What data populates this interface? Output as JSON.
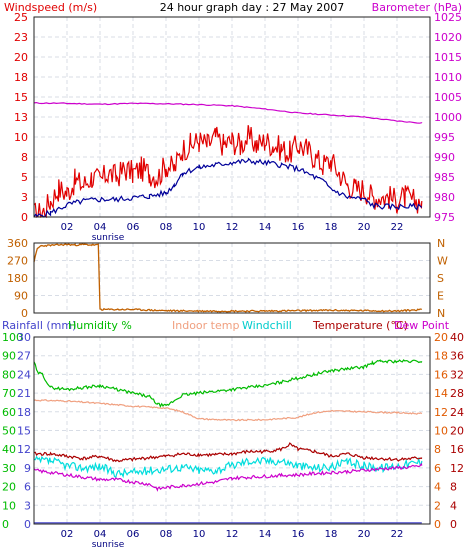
{
  "colors": {
    "windspeed": "#e00000",
    "wind_avg": "#000099",
    "barometer": "#cc00cc",
    "wind_dir": "#c06000",
    "rainfall": "#4444cc",
    "humidity": "#00bb00",
    "indoor_temp": "#f0a080",
    "windchill": "#00dddd",
    "temperature": "#aa0000",
    "dew_point": "#cc00cc",
    "text_blue": "#000080"
  },
  "chart_data": [
    {
      "type": "line",
      "title": "24 hour graph day : 27 May 2007",
      "left_axis_label": "Windspeed (m/s)",
      "right_axis_label": "Barometer (hPa)",
      "left_ticks": [
        "0",
        "3",
        "5",
        "8",
        "10",
        "13",
        "15",
        "18",
        "20",
        "23",
        "25"
      ],
      "right_ticks": [
        "975",
        "980",
        "985",
        "990",
        "995",
        "1000",
        "1005",
        "1010",
        "1015",
        "1020",
        "1025"
      ],
      "left_range": [
        0,
        25
      ],
      "right_range": [
        975,
        1025
      ],
      "x_range": [
        0,
        24
      ],
      "x_ticks": [
        "02",
        "04",
        "06",
        "08",
        "10",
        "12",
        "14",
        "16",
        "18",
        "20",
        "22"
      ],
      "x_note": "sunrise",
      "series": [
        {
          "key": "windspeed",
          "axis": "left",
          "x": [
            0,
            0.5,
            1,
            1.5,
            2,
            2.5,
            3,
            3.5,
            4,
            4.5,
            5,
            5.5,
            6,
            6.5,
            7,
            7.5,
            8,
            8.5,
            9,
            9.5,
            10,
            10.5,
            11,
            11.5,
            12,
            12.5,
            13,
            13.5,
            14,
            14.5,
            15,
            15.5,
            16,
            16.5,
            17,
            17.5,
            18,
            18.5,
            19,
            19.5,
            20,
            20.5,
            21,
            21.5,
            22,
            22.5,
            23,
            23.5
          ],
          "y": [
            0.3,
            0.5,
            2,
            3.5,
            3,
            4.5,
            4,
            5,
            4.5,
            5.5,
            5,
            6,
            5.5,
            6,
            5.5,
            5,
            6.5,
            6,
            8.5,
            9,
            9.5,
            9,
            10,
            9,
            9.5,
            9,
            10,
            9,
            9.5,
            9,
            8.5,
            8,
            9,
            8.5,
            7.5,
            6.5,
            7,
            5.5,
            4,
            3.5,
            3.5,
            2.5,
            2.5,
            2.5,
            2,
            2.5,
            2,
            2
          ]
        },
        {
          "key": "wind_avg",
          "axis": "left",
          "x": [
            0,
            1,
            2,
            3,
            4,
            5,
            6,
            7,
            8,
            8.5,
            9,
            10,
            11,
            12,
            13,
            14,
            15,
            16,
            17,
            17.5,
            18,
            18.5,
            19,
            20,
            20.5,
            21,
            22,
            23,
            23.5
          ],
          "y": [
            0,
            0.5,
            1.5,
            2,
            2.2,
            2.2,
            2.4,
            2.6,
            3,
            4,
            5.5,
            6.2,
            6.5,
            6.8,
            7,
            6.8,
            6.5,
            6,
            5,
            4.5,
            3.5,
            3,
            2.5,
            2.2,
            1.5,
            1.3,
            1.3,
            1.3,
            1.2
          ]
        },
        {
          "key": "barometer",
          "axis": "right",
          "x": [
            0,
            2,
            4,
            6,
            8,
            10,
            12,
            14,
            16,
            18,
            20,
            22,
            23.5
          ],
          "y": [
            1003.5,
            1003.4,
            1003.2,
            1003.4,
            1003.3,
            1003.1,
            1002.8,
            1002,
            1001,
            1000.5,
            1000,
            999,
            998.5
          ]
        }
      ]
    },
    {
      "type": "line",
      "left_ticks": [
        "0",
        "90",
        "180",
        "270",
        "360"
      ],
      "right_ticks": [
        "N",
        "E",
        "S",
        "W",
        "N"
      ],
      "left_range": [
        0,
        360
      ],
      "x_range": [
        0,
        24
      ],
      "series": [
        {
          "key": "wind_dir",
          "x": [
            0,
            0.2,
            0.4,
            1,
            1.5,
            2,
            2.5,
            3,
            3.5,
            3.9,
            4,
            4.1,
            6,
            8,
            10,
            12,
            14,
            16,
            18,
            20,
            22,
            23.5
          ],
          "y": [
            265,
            330,
            345,
            348,
            350,
            352,
            350,
            352,
            350,
            350,
            20,
            18,
            18,
            12,
            10,
            10,
            10,
            12,
            14,
            12,
            10,
            18
          ]
        }
      ]
    },
    {
      "type": "line",
      "legend": [
        "Rainfall (mm)",
        "Humidity %",
        "Indoor temp",
        "Windchill",
        "Temperature (°C)",
        "Dew Point"
      ],
      "rain_ticks": [
        "0",
        "3",
        "6",
        "9",
        "12",
        "15",
        "18",
        "21",
        "24",
        "27",
        "30"
      ],
      "rain_range": [
        0,
        30
      ],
      "humidity_ticks": [
        "0",
        "10",
        "20",
        "30",
        "40",
        "50",
        "60",
        "70",
        "80",
        "90",
        "100"
      ],
      "humidity_range": [
        0,
        100
      ],
      "temp_ticks_a": [
        "0",
        "4",
        "8",
        "12",
        "16",
        "20",
        "24",
        "28",
        "32",
        "36",
        "40"
      ],
      "temp_ticks_b": [
        "0",
        "2",
        "4",
        "6",
        "8",
        "10",
        "12",
        "14",
        "16",
        "18",
        "20"
      ],
      "temp_range": [
        0,
        40
      ],
      "x_range": [
        0,
        24
      ],
      "x_ticks": [
        "02",
        "04",
        "06",
        "08",
        "10",
        "12",
        "14",
        "16",
        "18",
        "20",
        "22"
      ],
      "x_note": "sunrise",
      "series": [
        {
          "key": "rainfall",
          "axis": "rain",
          "x": [
            0,
            23.5
          ],
          "y": [
            0.2,
            0.2
          ]
        },
        {
          "key": "humidity",
          "axis": "humidity",
          "x": [
            0,
            0.2,
            0.5,
            1,
            2,
            3,
            4,
            5,
            6,
            7,
            7.5,
            8,
            8.5,
            9,
            10,
            11,
            12,
            13,
            14,
            15,
            16,
            17,
            18,
            19,
            20,
            20.5,
            21,
            22,
            23,
            23.5
          ],
          "y": [
            87,
            81,
            80,
            73,
            72,
            73,
            74,
            72,
            70,
            68,
            64,
            63,
            66,
            69,
            70,
            71,
            72,
            73,
            74,
            76,
            78,
            80,
            82,
            83,
            84,
            86,
            87,
            87,
            87,
            87
          ]
        },
        {
          "key": "indoor_temp",
          "axis": "temp",
          "x": [
            0,
            2,
            4,
            6,
            8,
            9,
            10,
            12,
            14,
            16,
            17,
            18,
            20,
            22,
            23.5
          ],
          "y": [
            26.5,
            26.3,
            25.8,
            25.2,
            24.8,
            24,
            22.5,
            22.2,
            22.3,
            22.8,
            23.8,
            24.2,
            24,
            23.8,
            23.6
          ]
        },
        {
          "key": "windchill",
          "axis": "temp",
          "x": [
            0,
            1,
            2,
            3,
            4,
            5,
            6,
            7,
            8,
            9,
            10,
            11,
            12,
            13,
            14,
            15,
            16,
            17,
            18,
            19,
            20,
            21,
            22,
            23,
            23.5
          ],
          "y": [
            13.5,
            13.5,
            12.5,
            12,
            12.3,
            10.8,
            11,
            11.5,
            11.8,
            12.2,
            11.5,
            11.5,
            12.5,
            13.5,
            13.5,
            13.5,
            12.5,
            12,
            12.2,
            13.2,
            12.5,
            12,
            12.5,
            13,
            13.5
          ]
        },
        {
          "key": "temperature",
          "axis": "temp",
          "x": [
            0,
            1,
            2,
            3,
            4,
            5,
            6,
            7,
            8,
            9,
            10,
            11,
            12,
            13,
            14,
            15,
            15.5,
            16,
            17,
            18,
            19,
            20,
            21,
            22,
            23,
            23.5
          ],
          "y": [
            15,
            15,
            14.5,
            14,
            14.5,
            13.5,
            13.8,
            14.2,
            14.5,
            15,
            14.8,
            14.8,
            15,
            15.5,
            15.5,
            16,
            17,
            16,
            15.5,
            14.5,
            15,
            14.2,
            14,
            13.8,
            14,
            14.2
          ]
        },
        {
          "key": "dew_point",
          "axis": "temp",
          "x": [
            0,
            1,
            2,
            3,
            4,
            5,
            6,
            7,
            7.5,
            8,
            9,
            10,
            11,
            12,
            13,
            14,
            15,
            16,
            17,
            18,
            19,
            20,
            21,
            22,
            23,
            23.5
          ],
          "y": [
            11.5,
            11,
            10.5,
            10,
            9.5,
            9.5,
            9,
            8.5,
            7.5,
            7.8,
            8.2,
            8.6,
            9,
            9.8,
            10,
            10.2,
            10.4,
            10.5,
            10.8,
            11,
            11.2,
            11.5,
            11.8,
            12,
            12.2,
            12.5
          ]
        }
      ]
    }
  ]
}
